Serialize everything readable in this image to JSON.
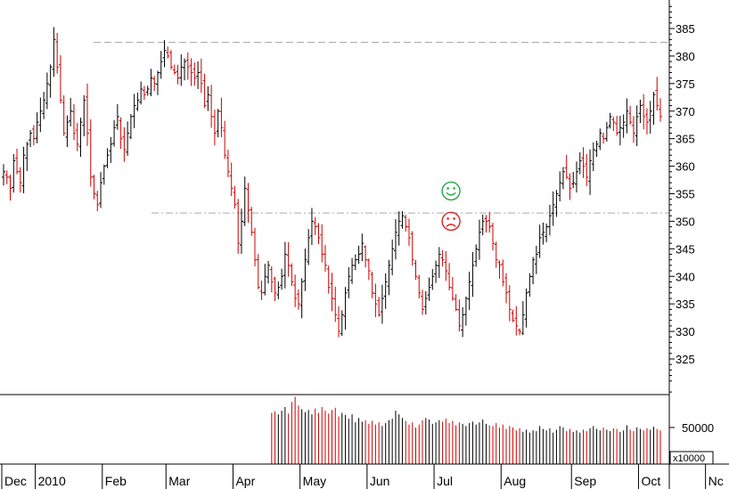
{
  "chart_data": {
    "type": "candlestick",
    "price_axis": {
      "ticks": [
        325,
        330,
        335,
        340,
        345,
        350,
        355,
        360,
        365,
        370,
        375,
        380,
        385
      ],
      "range": [
        319,
        392
      ]
    },
    "volume_axis": {
      "ticks": [
        50000
      ],
      "tick_labels": [
        "50000"
      ],
      "unit_label": "x10000",
      "range": [
        0,
        95000
      ]
    },
    "months": [
      {
        "label": "Dec",
        "start": 0
      },
      {
        "label": "2010",
        "start": 10
      },
      {
        "label": "Feb",
        "start": 30
      },
      {
        "label": "Mar",
        "start": 49
      },
      {
        "label": "Apr",
        "start": 69
      },
      {
        "label": "May",
        "start": 89
      },
      {
        "label": "Jun",
        "start": 109
      },
      {
        "label": "Jul",
        "start": 129
      },
      {
        "label": "Aug",
        "start": 149
      },
      {
        "label": "Sep",
        "start": 170
      },
      {
        "label": "Oct",
        "start": 190
      },
      {
        "label": "Nc",
        "start": 210
      }
    ],
    "reference_lines": [
      {
        "value": 382.5,
        "style": "dashed"
      },
      {
        "value": 351.5,
        "style": "dash-dot"
      }
    ],
    "annotations": [
      {
        "type": "smiley",
        "mood": "happy",
        "color": "#22aa44",
        "index": 133,
        "value": 355.5
      },
      {
        "type": "smiley",
        "mood": "sad",
        "color": "#dd2222",
        "index": 133,
        "value": 350.0
      }
    ],
    "colors": {
      "up": "#000000",
      "down": "#cc0000"
    },
    "close": [
      359.0,
      358.0,
      356.0,
      361.0,
      359.0,
      357.0,
      362.0,
      364.0,
      366.0,
      365.0,
      368.0,
      370.0,
      372.0,
      375.0,
      378.0,
      383.0,
      378.0,
      372.0,
      366.0,
      368.0,
      370.0,
      366.0,
      364.0,
      368.0,
      372.0,
      366.0,
      358.0,
      355.0,
      353.0,
      357.0,
      360.0,
      362.0,
      364.0,
      367.0,
      369.0,
      365.0,
      363.0,
      366.0,
      369.0,
      371.0,
      372.0,
      374.0,
      373.0,
      374.0,
      376.0,
      375.0,
      377.0,
      379.0,
      381.0,
      380.0,
      378.0,
      377.0,
      376.0,
      378.0,
      379.0,
      378.0,
      377.0,
      376.0,
      377.0,
      375.0,
      371.0,
      373.0,
      369.0,
      366.0,
      370.0,
      367.0,
      362.0,
      359.0,
      356.0,
      353.0,
      346.0,
      350.0,
      356.0,
      352.0,
      348.0,
      343.0,
      338.0,
      337.0,
      340.0,
      342.0,
      339.0,
      337.0,
      338.0,
      340.0,
      344.0,
      342.0,
      339.0,
      336.0,
      335.0,
      339.0,
      343.0,
      347.0,
      350.0,
      349.0,
      347.0,
      344.0,
      342.0,
      338.0,
      336.0,
      333.0,
      330.0,
      333.0,
      337.0,
      340.0,
      342.0,
      343.0,
      344.0,
      346.0,
      343.0,
      341.0,
      337.0,
      335.0,
      333.0,
      336.0,
      339.0,
      342.0,
      345.0,
      348.0,
      350.0,
      351.0,
      349.0,
      347.0,
      343.0,
      340.0,
      337.0,
      334.0,
      336.0,
      338.0,
      340.0,
      342.0,
      344.0,
      343.0,
      341.0,
      338.0,
      336.0,
      334.0,
      331.0,
      333.0,
      336.0,
      339.0,
      342.0,
      345.0,
      348.0,
      350.0,
      350.0,
      349.0,
      346.0,
      343.0,
      342.0,
      339.0,
      337.0,
      334.0,
      332.0,
      331.0,
      330.0,
      333.0,
      337.0,
      340.0,
      343.0,
      344.0,
      347.0,
      348.0,
      349.0,
      351.0,
      353.0,
      355.0,
      357.0,
      359.0,
      358.0,
      356.0,
      357.0,
      359.0,
      361.0,
      360.0,
      358.0,
      361.0,
      363.0,
      364.0,
      366.0,
      365.0,
      367.0,
      369.0,
      368.0,
      366.0,
      367.0,
      368.0,
      370.0,
      368.0,
      366.0,
      369.0,
      371.0,
      369.0,
      368.0,
      370.0,
      373.0,
      371.0,
      369.0
    ],
    "volume": [
      0,
      0,
      0,
      0,
      0,
      0,
      0,
      0,
      0,
      0,
      0,
      0,
      0,
      0,
      0,
      0,
      0,
      0,
      0,
      0,
      0,
      0,
      0,
      0,
      0,
      0,
      0,
      0,
      0,
      0,
      0,
      0,
      0,
      0,
      0,
      0,
      0,
      0,
      0,
      0,
      0,
      0,
      0,
      0,
      0,
      0,
      0,
      0,
      0,
      0,
      0,
      0,
      0,
      0,
      0,
      0,
      0,
      0,
      0,
      0,
      0,
      0,
      0,
      0,
      0,
      0,
      0,
      0,
      0,
      0,
      0,
      0,
      0,
      0,
      0,
      0,
      0,
      0,
      0,
      0,
      70000,
      72000,
      68000,
      73000,
      78000,
      69000,
      85000,
      92000,
      80000,
      75000,
      71000,
      74000,
      68000,
      76000,
      70000,
      78000,
      73000,
      69000,
      74000,
      77000,
      65000,
      70000,
      67000,
      62000,
      68000,
      57000,
      63000,
      58000,
      60000,
      55000,
      59000,
      54000,
      57000,
      52000,
      56000,
      60000,
      62000,
      73000,
      68000,
      63000,
      59000,
      54000,
      57000,
      50000,
      54000,
      60000,
      63000,
      61000,
      55000,
      57000,
      60000,
      58000,
      62000,
      56000,
      59000,
      53000,
      57000,
      55000,
      52000,
      56000,
      58000,
      54000,
      57000,
      61000,
      55000,
      53000,
      52000,
      56000,
      50000,
      54000,
      48000,
      52000,
      50000,
      46000,
      49000,
      44000,
      47000,
      43000,
      46000,
      45000,
      52000,
      48000,
      46000,
      49000,
      43000,
      47000,
      52000,
      50000,
      45000,
      48000,
      44000,
      46000,
      43000,
      47000,
      45000,
      49000,
      52000,
      48000,
      46000,
      50000,
      47000,
      45000,
      49000,
      48000,
      44000,
      46000,
      53000,
      47000,
      45000,
      50000,
      48000,
      46000,
      49000,
      47000,
      51000,
      48000,
      46000
    ]
  }
}
